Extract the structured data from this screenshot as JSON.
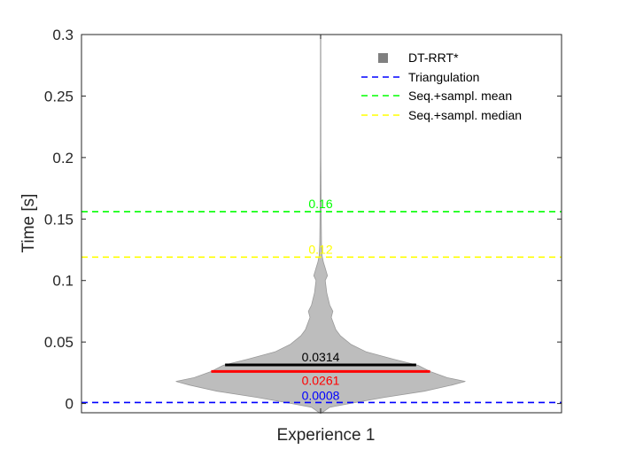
{
  "chart_data": {
    "type": "violin",
    "ylabel": "Time [s]",
    "categories": [
      "Experience 1"
    ],
    "ylim": [
      -0.0075,
      0.3
    ],
    "yticks": [
      0,
      0.05,
      0.1,
      0.15,
      0.2,
      0.25,
      0.3
    ],
    "ytick_labels": [
      "0",
      "0.05",
      "0.1",
      "0.15",
      "0.2",
      "0.25",
      "0.3"
    ],
    "violin": {
      "name": "DT-RRT*",
      "color": "#bdbdbd",
      "legend_color": "#808080",
      "max": 0.3,
      "min": -0.008,
      "profile": [
        [
          -0.008,
          0.003
        ],
        [
          -0.003,
          0.06
        ],
        [
          0.0,
          0.19
        ],
        [
          0.005,
          0.42
        ],
        [
          0.01,
          0.68
        ],
        [
          0.015,
          0.86
        ],
        [
          0.018,
          0.95
        ],
        [
          0.021,
          0.83
        ],
        [
          0.026,
          0.72
        ],
        [
          0.031,
          0.64
        ],
        [
          0.036,
          0.48
        ],
        [
          0.042,
          0.3
        ],
        [
          0.048,
          0.2
        ],
        [
          0.055,
          0.13
        ],
        [
          0.06,
          0.1
        ],
        [
          0.07,
          0.07
        ],
        [
          0.075,
          0.08
        ],
        [
          0.08,
          0.06
        ],
        [
          0.09,
          0.04
        ],
        [
          0.1,
          0.03
        ],
        [
          0.104,
          0.045
        ],
        [
          0.11,
          0.03
        ],
        [
          0.115,
          0.018
        ],
        [
          0.12,
          0.01
        ],
        [
          0.13,
          0.006
        ],
        [
          0.15,
          0.004
        ],
        [
          0.2,
          0.002
        ],
        [
          0.3,
          0.001
        ]
      ],
      "mean": 0.0314,
      "median": 0.0261,
      "mean_label": "0.0314",
      "median_label": "0.0261",
      "mean_color": "#000000",
      "median_color": "#ff0000"
    },
    "reference_lines": [
      {
        "name": "Triangulation",
        "value": 0.0008,
        "label": "0.0008",
        "color": "#0000ff"
      },
      {
        "name": "Seq.+sampl. mean",
        "value": 0.156,
        "label": "0.16",
        "color": "#00ff00"
      },
      {
        "name": "Seq.+sampl. median",
        "value": 0.119,
        "label": "0.12",
        "color": "#ffff00"
      }
    ],
    "legend": {
      "position": "top-right",
      "entries": [
        "DT-RRT*",
        "Triangulation",
        "Seq.+sampl. mean",
        "Seq.+sampl. median"
      ]
    },
    "grid": false
  }
}
